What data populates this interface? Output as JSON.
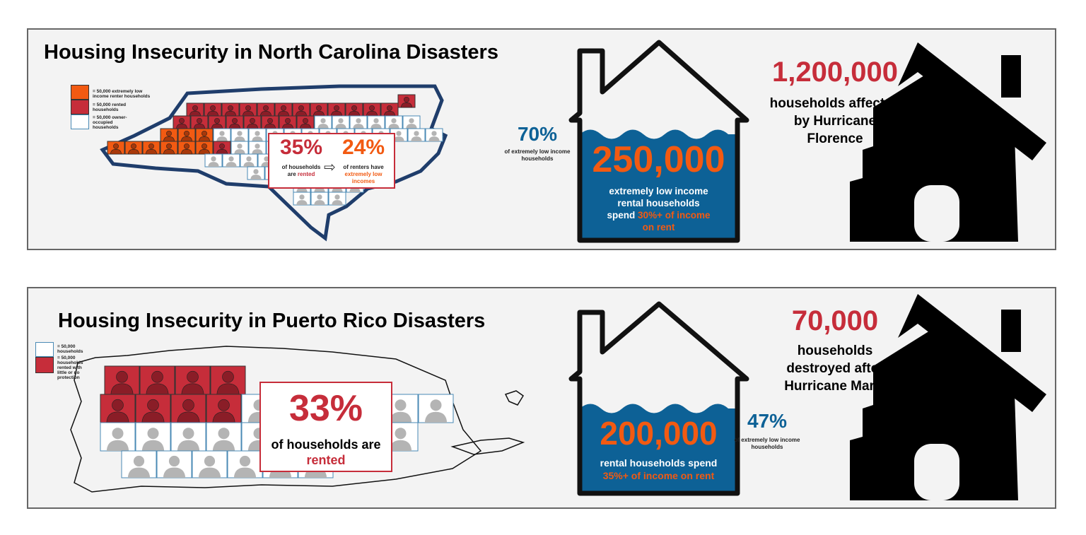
{
  "colors": {
    "red": "#c62d3a",
    "orange": "#f25a12",
    "blue": "#0d6196",
    "owner": "#ffffff",
    "person_gray": "#b4b4b4",
    "map_outline_nc": "#1f3d6b"
  },
  "nc": {
    "title": "Housing Insecurity in North Carolina Disasters",
    "legend": [
      {
        "icon": "person-orange-icon",
        "label": "= 50,000 extremely low income renter households"
      },
      {
        "icon": "person-red-icon",
        "label": "= 50,000 rented households"
      },
      {
        "icon": "person-white-icon",
        "label": "= 50,000 owner-occupied households"
      }
    ],
    "callout": {
      "left_value": "35%",
      "left_line1": "of households",
      "left_line2_pre": "are ",
      "left_line2_hl": "rented",
      "right_value": "24%",
      "right_line1": "of renters have",
      "right_line2_hl": "extremely low",
      "right_line3_hl": "incomes",
      "arrow_icon": "arrow-right-icon"
    },
    "side_stat": {
      "value": "70%",
      "label": "of extremely low income households"
    },
    "house": {
      "value": "250,000",
      "line1": "extremely low income",
      "line2": "rental households",
      "line3_pre": "spend ",
      "line3_hl": "30%+ of income",
      "line4_hl": "on rent"
    },
    "affected": {
      "value": "1,200,000",
      "line1": "households affected",
      "line2": "by Hurricane",
      "line3": "Florence"
    }
  },
  "pr": {
    "title": "Housing Insecurity in Puerto Rico Disasters",
    "legend": [
      {
        "icon": "person-white-icon",
        "label": "= 50,000 households"
      },
      {
        "icon": "person-red-icon",
        "label": "= 50,000 households rented with little or no protection"
      }
    ],
    "callout": {
      "value": "33%",
      "line1": "of households are",
      "line2_hl": "rented"
    },
    "side_stat": {
      "value": "47%",
      "label": "of extremely low income households"
    },
    "house": {
      "value": "200,000",
      "line1": "rental households spend",
      "line2_hl": "35%+ of income on rent"
    },
    "destroyed": {
      "value": "70,000",
      "line1": "households",
      "line2": "destroyed after",
      "line3": "Hurricane Maria"
    }
  }
}
